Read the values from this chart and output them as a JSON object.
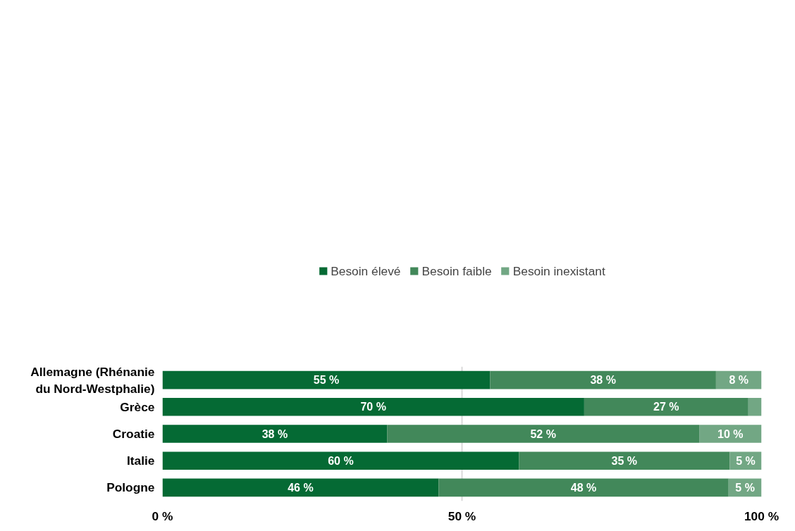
{
  "chart_data": {
    "type": "bar",
    "orientation": "horizontal",
    "stacked": true,
    "categories": [
      "Allemagne (Rhénanie du Nord-Westphalie)",
      "Grèce",
      "Croatie",
      "Italie",
      "Pologne"
    ],
    "series": [
      {
        "name": "Besoin élevé",
        "color": "#056a34",
        "values": [
          54.7,
          70.4,
          37.5,
          59.5,
          46.1
        ],
        "value_labels": [
          "55 %",
          "70 %",
          "38 %",
          "60 %",
          "46 %"
        ]
      },
      {
        "name": "Besoin faible",
        "color": "#42885a",
        "values": [
          37.7,
          27.4,
          52.1,
          35.2,
          48.4
        ],
        "value_labels": [
          "38 %",
          "27 %",
          "52 %",
          "35 %",
          "48 %"
        ]
      },
      {
        "name": "Besoin inexistant",
        "color": "#72a784",
        "values": [
          7.6,
          2.2,
          10.4,
          5.3,
          5.5
        ],
        "value_labels": [
          "8 %",
          null,
          "10 %",
          "5 %",
          "5 %"
        ]
      }
    ],
    "xlim": [
      0,
      100
    ],
    "xticks": [
      {
        "value": 0,
        "label": "0 %"
      },
      {
        "value": 50,
        "label": "50 %"
      },
      {
        "value": 100,
        "label": "100 %"
      }
    ],
    "grid": "x",
    "legend": "top"
  }
}
